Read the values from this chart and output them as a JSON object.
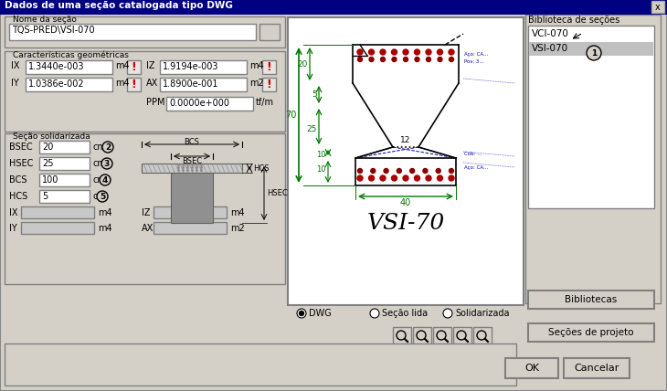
{
  "title": "Dados de uma seção catalogada tipo DWG",
  "bg_color": "#d4d0c8",
  "white": "#ffffff",
  "gray_field": "#b8b8b8",
  "red": "#cc0000",
  "section_name": "TQS-PRED\\VSI-070",
  "ix_val": "1.3440e-003",
  "iy_val": "1.0386e-002",
  "iz_val": "1.9194e-003",
  "ax_val": "1.8900e-001",
  "ppm_val": "0.0000e+000",
  "bsec_val": "20",
  "hsec_val": "25",
  "bcs_val": "100",
  "hcs_val": "5",
  "lib_items": [
    "VCI-070",
    "VSI-070"
  ],
  "selected_item": 1,
  "radio_labels": [
    "DWG",
    "Seção lida",
    "Solidarizada"
  ],
  "btn_bibliotecas": "Bibliotecas",
  "btn_secoes": "Seções de projeto",
  "btn_ok": "OK",
  "btn_cancelar": "Cancelar",
  "group_nome": "Nome da seção",
  "group_caract": "Características geométricas",
  "group_secao": "Seção solidarizada",
  "lbl_biblioteca": "Biblioteca de seções"
}
